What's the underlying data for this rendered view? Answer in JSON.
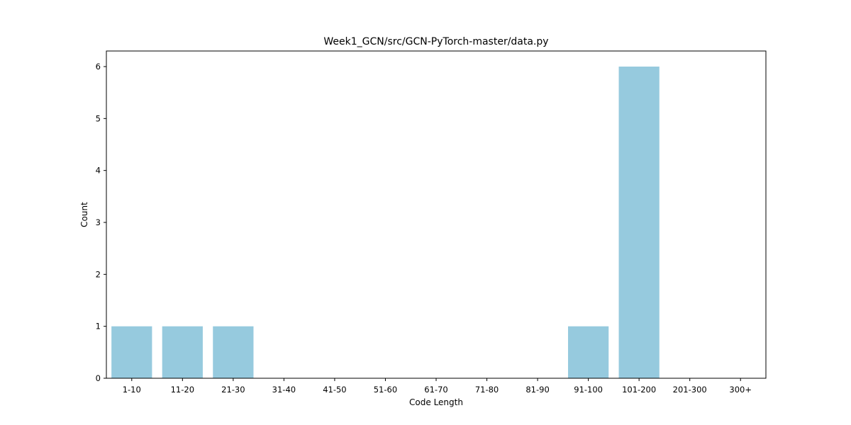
{
  "chart_data": {
    "type": "bar",
    "title": "Week1_GCN/src/GCN-PyTorch-master/data.py",
    "xlabel": "Code Length",
    "ylabel": "Count",
    "categories": [
      "1-10",
      "11-20",
      "21-30",
      "31-40",
      "41-50",
      "51-60",
      "61-70",
      "71-80",
      "81-90",
      "91-100",
      "101-200",
      "201-300",
      "300+"
    ],
    "values": [
      1,
      1,
      1,
      0,
      0,
      0,
      0,
      0,
      0,
      1,
      6,
      0,
      0
    ],
    "ylim": [
      0,
      6.3
    ],
    "yticks": [
      0,
      1,
      2,
      3,
      4,
      5,
      6
    ],
    "grid": false,
    "legend": "none",
    "bar_color": "#96CADE"
  }
}
